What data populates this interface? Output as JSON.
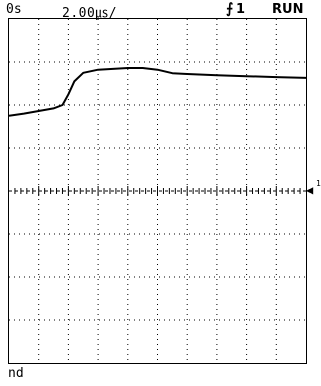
{
  "header": {
    "time_offset": "0s",
    "timebase": "2.00㎲/",
    "trigger_icon": "trigger-edge-icon",
    "trigger_symbol": "⨍",
    "trigger_channel": "1",
    "run_status": "RUN"
  },
  "screen": {
    "divisions_x": 10,
    "divisions_y": 8,
    "grid": true,
    "trace_color": "#000000",
    "grid_color": "#000000",
    "channel_marker": "◀",
    "channel_label": "1"
  },
  "trace": {
    "name": "channel-1-waveform",
    "samples": [
      [
        0,
        5.75
      ],
      [
        0.5,
        5.8
      ],
      [
        1.0,
        5.86
      ],
      [
        1.5,
        5.92
      ],
      [
        1.8,
        6.0
      ],
      [
        2.0,
        6.25
      ],
      [
        2.2,
        6.55
      ],
      [
        2.5,
        6.75
      ],
      [
        3.0,
        6.82
      ],
      [
        3.5,
        6.84
      ],
      [
        4.0,
        6.86
      ],
      [
        4.5,
        6.86
      ],
      [
        5.0,
        6.82
      ],
      [
        5.5,
        6.74
      ],
      [
        6.0,
        6.72
      ],
      [
        7.0,
        6.69
      ],
      [
        8.0,
        6.67
      ],
      [
        9.0,
        6.65
      ],
      [
        10.0,
        6.63
      ]
    ]
  },
  "status": {
    "text": "nd"
  }
}
